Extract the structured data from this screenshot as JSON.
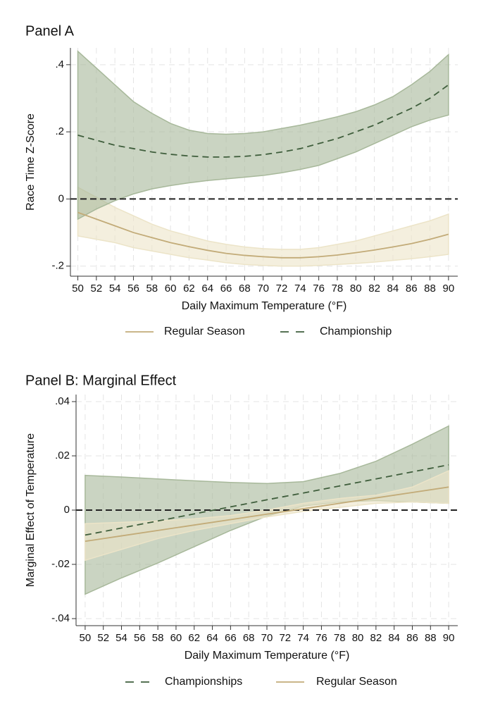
{
  "chart_data": [
    {
      "type": "line",
      "title": "Panel A",
      "xlabel": "Daily Maximum Temperature (°F)",
      "ylabel": "Race Time Z-Score",
      "x": [
        50,
        52,
        54,
        56,
        58,
        60,
        62,
        64,
        66,
        68,
        70,
        72,
        74,
        76,
        78,
        80,
        82,
        84,
        86,
        88,
        90
      ],
      "xlim": [
        49.2,
        91
      ],
      "xticks": [
        50,
        52,
        54,
        56,
        58,
        60,
        62,
        64,
        66,
        68,
        70,
        72,
        74,
        76,
        78,
        80,
        82,
        84,
        86,
        88,
        90
      ],
      "ylim": [
        -0.23,
        0.45
      ],
      "yticks": [
        {
          "value": -0.2,
          "label": "-.2"
        },
        0,
        {
          "value": 0.2,
          "label": ".2"
        },
        {
          "value": 0.4,
          "label": ".4"
        }
      ],
      "grid": true,
      "hline": 0,
      "series": [
        {
          "name": "Regular Season",
          "color": "#c2ab78",
          "band_color": "#ece4c8",
          "style": "solid",
          "values": [
            -0.04,
            -0.06,
            -0.08,
            -0.1,
            -0.115,
            -0.13,
            -0.142,
            -0.153,
            -0.162,
            -0.168,
            -0.172,
            -0.175,
            -0.175,
            -0.172,
            -0.167,
            -0.16,
            -0.152,
            -0.143,
            -0.133,
            -0.12,
            -0.105
          ],
          "upper": [
            0.035,
            0.005,
            -0.025,
            -0.05,
            -0.075,
            -0.095,
            -0.11,
            -0.125,
            -0.135,
            -0.143,
            -0.148,
            -0.15,
            -0.15,
            -0.145,
            -0.135,
            -0.125,
            -0.11,
            -0.095,
            -0.08,
            -0.065,
            -0.045
          ],
          "lower": [
            -0.11,
            -0.12,
            -0.13,
            -0.145,
            -0.155,
            -0.165,
            -0.175,
            -0.182,
            -0.19,
            -0.195,
            -0.198,
            -0.2,
            -0.2,
            -0.198,
            -0.195,
            -0.192,
            -0.188,
            -0.183,
            -0.178,
            -0.172,
            -0.165
          ]
        },
        {
          "name": "Championship",
          "color": "#3f5e3c",
          "band_color": "#a7b89a",
          "style": "dash",
          "values": [
            0.19,
            0.175,
            0.16,
            0.15,
            0.14,
            0.133,
            0.128,
            0.125,
            0.125,
            0.127,
            0.132,
            0.14,
            0.15,
            0.165,
            0.18,
            0.2,
            0.22,
            0.245,
            0.27,
            0.3,
            0.34
          ],
          "upper": [
            0.44,
            0.39,
            0.34,
            0.29,
            0.255,
            0.225,
            0.205,
            0.195,
            0.193,
            0.195,
            0.2,
            0.21,
            0.22,
            0.232,
            0.245,
            0.26,
            0.28,
            0.305,
            0.34,
            0.38,
            0.43
          ],
          "lower": [
            -0.06,
            -0.03,
            -0.005,
            0.015,
            0.03,
            0.04,
            0.048,
            0.055,
            0.06,
            0.065,
            0.07,
            0.078,
            0.088,
            0.1,
            0.12,
            0.14,
            0.165,
            0.19,
            0.215,
            0.235,
            0.25
          ]
        }
      ]
    },
    {
      "type": "line",
      "title": "Panel B: Marginal Effect",
      "xlabel": "Daily Maximum Temperature (°F)",
      "ylabel": "Marginal Effect of Temperature",
      "x": [
        50,
        54,
        58,
        62,
        66,
        70,
        74,
        78,
        82,
        86,
        90
      ],
      "xlim": [
        49,
        91
      ],
      "xticks": [
        50,
        52,
        54,
        56,
        58,
        60,
        62,
        64,
        66,
        68,
        70,
        72,
        74,
        76,
        78,
        80,
        82,
        84,
        86,
        88,
        90
      ],
      "ylim": [
        -0.0426,
        0.0426
      ],
      "yticks": [
        {
          "value": -0.04,
          "label": "-.04"
        },
        {
          "value": -0.02,
          "label": "-.02"
        },
        0,
        {
          "value": 0.02,
          "label": ".02"
        },
        {
          "value": 0.04,
          "label": ".04"
        }
      ],
      "grid": true,
      "hline": 0,
      "series": [
        {
          "name": "Championships",
          "color": "#3f5e3c",
          "band_color": "#a7b89a",
          "style": "dash",
          "values": [
            -0.0092,
            -0.0066,
            -0.004,
            -0.0014,
            0.0012,
            0.0038,
            0.0063,
            0.0089,
            0.0115,
            0.0141,
            0.0167
          ],
          "upper": [
            0.0128,
            0.0122,
            0.0115,
            0.0108,
            0.0102,
            0.0098,
            0.0105,
            0.0135,
            0.018,
            0.0243,
            0.031
          ],
          "lower": [
            -0.031,
            -0.025,
            -0.0195,
            -0.0135,
            -0.0075,
            -0.0022,
            0.0015,
            0.003,
            0.0035,
            0.003,
            0.0025
          ]
        },
        {
          "name": "Regular Season",
          "color": "#c2ab78",
          "band_color": "#ece4c8",
          "style": "solid",
          "values": [
            -0.0115,
            -0.0095,
            -0.0075,
            -0.0055,
            -0.0035,
            -0.0015,
            0.0005,
            0.0025,
            0.0045,
            0.0065,
            0.0085
          ],
          "upper": [
            -0.005,
            -0.0045,
            -0.004,
            -0.0032,
            -0.002,
            0,
            0.0025,
            0.0043,
            0.0055,
            0.0085,
            0.0145
          ],
          "lower": [
            -0.0185,
            -0.0145,
            -0.0105,
            -0.0075,
            -0.005,
            -0.0025,
            -0.0005,
            0.001,
            0.0025,
            0.003,
            0.0025
          ]
        }
      ]
    }
  ]
}
